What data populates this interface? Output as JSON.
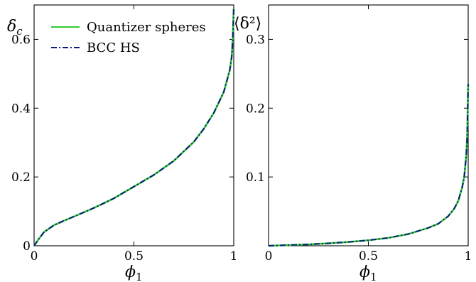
{
  "chart_data": [
    {
      "type": "line",
      "ylabel_base": "δ",
      "ylabel_sub": "c",
      "xlabel_base": "ϕ",
      "xlabel_sub": "1",
      "xlim": [
        0,
        1
      ],
      "ylim": [
        0,
        0.7
      ],
      "xticks": [
        0,
        0.5,
        1
      ],
      "xtick_labels": [
        "0",
        "0.5",
        "1"
      ],
      "yticks": [
        0,
        0.2,
        0.4,
        0.6
      ],
      "ytick_labels": [
        "0",
        "0.2",
        "0.4",
        "0.6"
      ],
      "grid": false,
      "legend_position": "top-left",
      "series": [
        {
          "name": "Quantizer spheres",
          "color": "#33cc33",
          "style": "solid",
          "x": [
            0,
            0.02,
            0.05,
            0.1,
            0.15,
            0.2,
            0.3,
            0.4,
            0.5,
            0.6,
            0.7,
            0.8,
            0.85,
            0.9,
            0.95,
            0.98,
            0.99,
            0.995,
            1.0
          ],
          "y": [
            0,
            0.017,
            0.04,
            0.06,
            0.073,
            0.085,
            0.11,
            0.138,
            0.172,
            0.206,
            0.247,
            0.302,
            0.34,
            0.386,
            0.447,
            0.51,
            0.55,
            0.6,
            0.69
          ]
        },
        {
          "name": "BCC HS",
          "color": "#0a1a80",
          "style": "dashdot",
          "x": [
            0,
            0.02,
            0.05,
            0.1,
            0.15,
            0.2,
            0.3,
            0.4,
            0.5,
            0.6,
            0.7,
            0.8,
            0.85,
            0.9,
            0.95,
            0.98,
            0.99,
            0.995,
            1.0
          ],
          "y": [
            0,
            0.017,
            0.04,
            0.06,
            0.073,
            0.085,
            0.11,
            0.138,
            0.172,
            0.206,
            0.247,
            0.302,
            0.34,
            0.386,
            0.447,
            0.51,
            0.55,
            0.6,
            0.69
          ]
        }
      ]
    },
    {
      "type": "line",
      "ylabel_text": "⟨δ²⟩",
      "xlabel_base": "ϕ",
      "xlabel_sub": "1",
      "xlim": [
        0,
        1
      ],
      "ylim": [
        0,
        0.35
      ],
      "xticks": [
        0,
        0.5,
        1
      ],
      "xtick_labels": [
        "0",
        "0.5",
        "1"
      ],
      "yticks": [
        0.1,
        0.2,
        0.3
      ],
      "ytick_labels": [
        "0.1",
        "0.2",
        "0.3"
      ],
      "grid": false,
      "series": [
        {
          "color": "#33cc33",
          "style": "solid",
          "x": [
            0,
            0.1,
            0.2,
            0.3,
            0.4,
            0.5,
            0.6,
            0.7,
            0.8,
            0.85,
            0.9,
            0.93,
            0.95,
            0.97,
            0.98,
            0.99,
            0.995,
            1.0
          ],
          "y": [
            0,
            0.001,
            0.002,
            0.0035,
            0.0055,
            0.008,
            0.0115,
            0.017,
            0.026,
            0.032,
            0.043,
            0.054,
            0.065,
            0.085,
            0.1,
            0.13,
            0.16,
            0.235
          ]
        },
        {
          "color": "#0a1a80",
          "style": "dashdot",
          "x": [
            0,
            0.1,
            0.2,
            0.3,
            0.4,
            0.5,
            0.6,
            0.7,
            0.8,
            0.85,
            0.9,
            0.93,
            0.95,
            0.97,
            0.98,
            0.99,
            0.995,
            1.0
          ],
          "y": [
            0,
            0.001,
            0.002,
            0.0035,
            0.0055,
            0.008,
            0.0115,
            0.017,
            0.026,
            0.032,
            0.043,
            0.054,
            0.065,
            0.085,
            0.1,
            0.13,
            0.16,
            0.235
          ]
        }
      ]
    }
  ]
}
